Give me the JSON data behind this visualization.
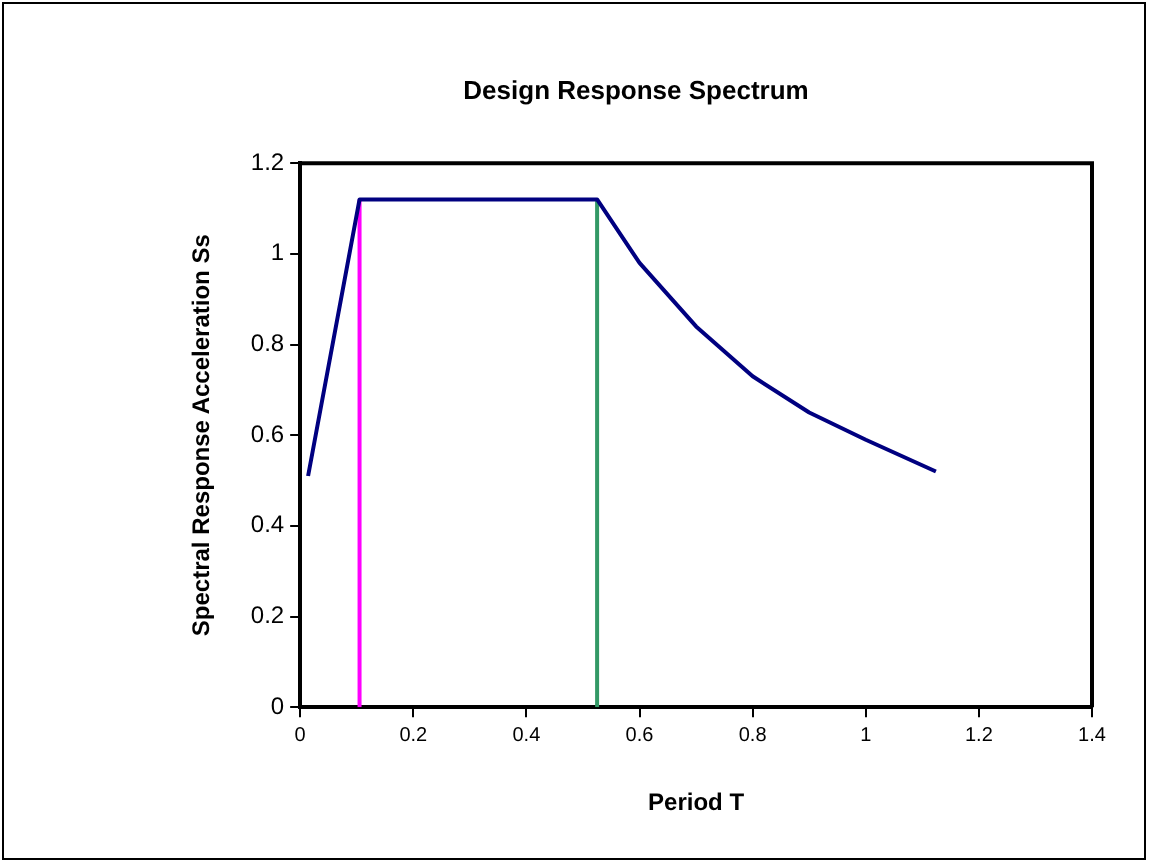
{
  "chart_data": {
    "type": "line",
    "title": "Design Response Spectrum",
    "xlabel": "Period T",
    "ylabel": "Spectral Response Acceleration Ss",
    "xlim": [
      0,
      1.4
    ],
    "xticks": [
      0,
      0.2,
      0.4,
      0.6,
      0.8,
      1,
      1.2,
      1.4
    ],
    "ylim": [
      0,
      1.2
    ],
    "yticks": [
      0,
      0.2,
      0.4,
      0.6,
      0.8,
      1,
      1.2
    ],
    "grid": false,
    "legend": false,
    "marker": "none",
    "series": [
      {
        "color": "#000080",
        "x": [
          0.014,
          0.105,
          0.525,
          0.6,
          0.7,
          0.8,
          0.9,
          1,
          1.124
        ],
        "values": [
          0.51,
          1.12,
          1.12,
          0.98,
          0.84,
          0.73,
          0.65,
          0.59,
          0.52
        ]
      },
      {
        "color": "#ff00ff",
        "x": [
          0.105,
          0.105
        ],
        "values": [
          0,
          1.12
        ]
      },
      {
        "color": "#339966",
        "x": [
          0.525,
          0.525
        ],
        "values": [
          0,
          1.12
        ]
      }
    ]
  }
}
